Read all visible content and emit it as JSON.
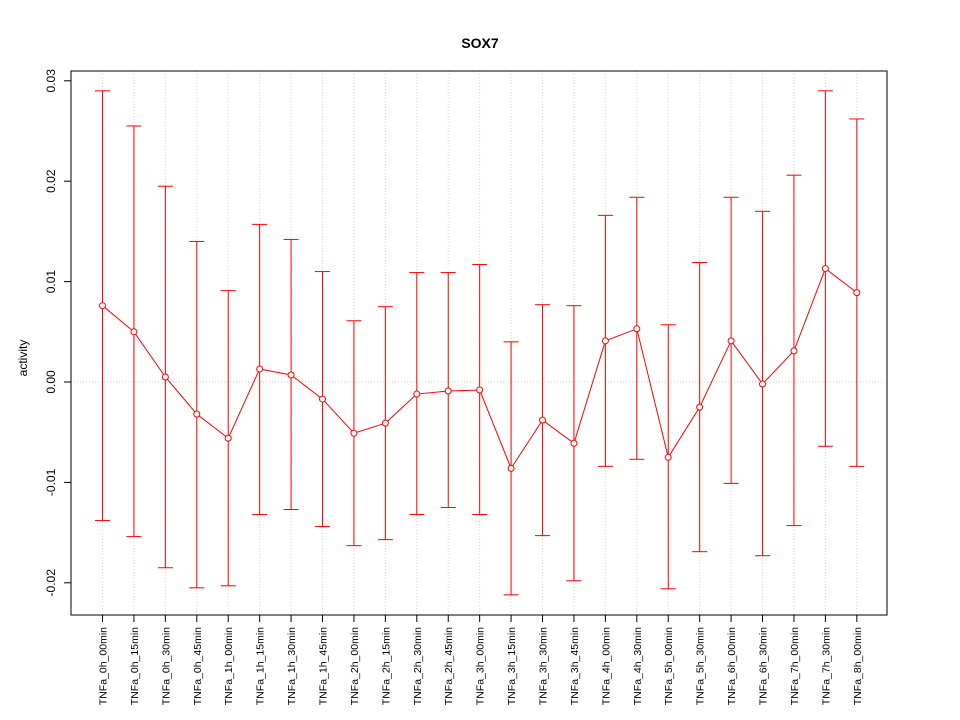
{
  "chart_data": {
    "type": "line",
    "title": "SOX7",
    "xlabel": "",
    "ylabel": "activity",
    "ylim": [
      -0.0233,
      0.03
    ],
    "yticks": [
      -0.02,
      -0.01,
      0.0,
      0.01,
      0.02,
      0.03
    ],
    "ytick_labels": [
      "-0.02",
      "-0.01",
      "0.00",
      "0.01",
      "0.02",
      "0.03"
    ],
    "grid": true,
    "color": "#ff0000",
    "categories": [
      "TNFa_0h_00min",
      "TNFa_0h_15min",
      "TNFa_0h_30min",
      "TNFa_0h_45min",
      "TNFa_1h_00min",
      "TNFa_1h_15min",
      "TNFa_1h_30min",
      "TNFa_1h_45min",
      "TNFa_2h_00min",
      "TNFa_2h_15min",
      "TNFa_2h_30min",
      "TNFa_2h_45min",
      "TNFa_3h_00min",
      "TNFa_3h_15min",
      "TNFa_3h_30min",
      "TNFa_3h_45min",
      "TNFa_4h_00min",
      "TNFa_4h_30min",
      "TNFa_5h_00min",
      "TNFa_5h_30min",
      "TNFa_6h_00min",
      "TNFa_6h_30min",
      "TNFa_7h_00min",
      "TNFa_7h_30min",
      "TNFa_8h_00min"
    ],
    "values": [
      0.0076,
      0.005,
      0.0005,
      -0.0032,
      -0.0056,
      0.0013,
      0.0007,
      -0.0017,
      -0.0051,
      -0.0041,
      -0.0012,
      -0.0009,
      -0.0008,
      -0.0086,
      -0.0038,
      -0.0061,
      0.0041,
      0.0053,
      -0.0075,
      -0.0025,
      0.0041,
      -0.0002,
      0.0031,
      0.0113,
      0.0089
    ],
    "upper": [
      0.029,
      0.0255,
      0.0195,
      0.014,
      0.0091,
      0.0157,
      0.0142,
      0.011,
      0.0061,
      0.0075,
      0.0109,
      0.0109,
      0.0117,
      0.004,
      0.0077,
      0.0076,
      0.0166,
      0.0184,
      0.0057,
      0.0119,
      0.0184,
      0.017,
      0.0206,
      0.029,
      0.0262
    ],
    "lower": [
      -0.0138,
      -0.0154,
      -0.0185,
      -0.0205,
      -0.0203,
      -0.0132,
      -0.0127,
      -0.0144,
      -0.0163,
      -0.0157,
      -0.0132,
      -0.0125,
      -0.0132,
      -0.0212,
      -0.0153,
      -0.0198,
      -0.0084,
      -0.0077,
      -0.0206,
      -0.0169,
      -0.0101,
      -0.0173,
      -0.0143,
      -0.0064,
      -0.0084
    ]
  }
}
